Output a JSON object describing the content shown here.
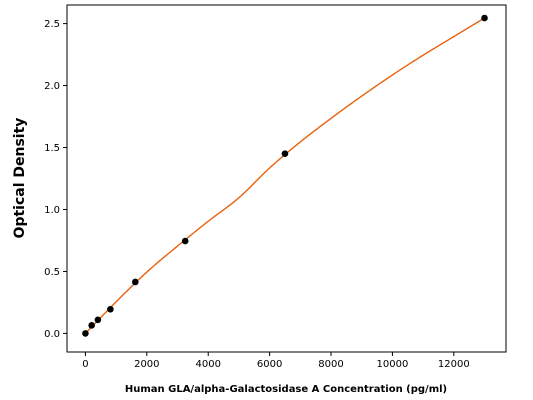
{
  "chart_data": {
    "type": "scatter",
    "xlabel": "Human GLA/alpha-Galactosidase A Concentration (pg/ml)",
    "ylabel": "Optical Density",
    "xlim": [
      -600,
      13700
    ],
    "ylim": [
      -0.15,
      2.65
    ],
    "xticks": [
      0,
      2000,
      4000,
      6000,
      8000,
      10000,
      12000
    ],
    "yticks": [
      0.0,
      0.5,
      1.0,
      1.5,
      2.0,
      2.5
    ],
    "grid": false,
    "series": [
      {
        "marker": "circle",
        "color": "#000000",
        "x": [
          0,
          203,
          406,
          813,
          1625,
          3250,
          6500,
          13000
        ],
        "y": [
          0.0,
          0.065,
          0.11,
          0.195,
          0.415,
          0.745,
          1.45,
          2.545
        ]
      }
    ],
    "fit_curve": {
      "color": "#e8620c",
      "x_range": [
        0,
        13000
      ],
      "x": [
        0,
        1000,
        2000,
        3000,
        4000,
        5000,
        6000,
        7000,
        8000,
        9000,
        10000,
        11000,
        12000,
        13000
      ],
      "y": [
        0.0,
        0.255,
        0.495,
        0.705,
        0.905,
        1.095,
        1.335,
        1.545,
        1.735,
        1.915,
        2.085,
        2.245,
        2.395,
        2.545
      ]
    }
  }
}
